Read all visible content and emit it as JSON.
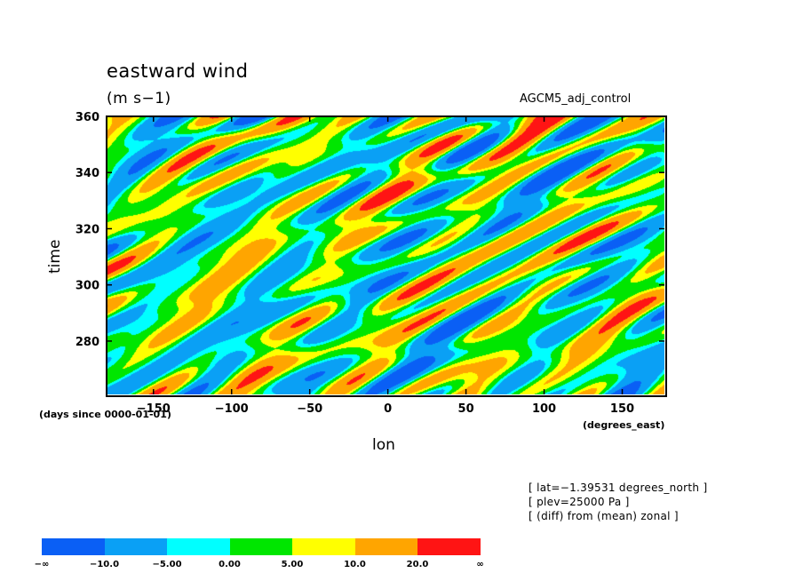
{
  "chart_data": {
    "type": "heatmap",
    "title": "eastward wind",
    "units": "(m s−1)",
    "experiment": "AGCM5_adj_control",
    "xlabel": "lon",
    "xunits": "(degrees_east)",
    "ylabel": "time",
    "yunits": "(days since 0000-01-01)",
    "xlim": [
      -180,
      177
    ],
    "ylim": [
      261,
      360
    ],
    "xticks": [
      -150,
      -100,
      -50,
      0,
      50,
      100,
      150
    ],
    "xtick_labels": [
      "−150",
      "−100",
      "−50",
      "0",
      "50",
      "100",
      "150"
    ],
    "yticks": [
      280,
      300,
      320,
      340,
      360
    ],
    "ytick_labels": [
      "280",
      "300",
      "320",
      "340",
      "360"
    ],
    "attributes": [
      "[ lat=−1.39531 degrees_north ]",
      "[ plev=25000 Pa ]",
      "[ (diff) from (mean) zonal ]"
    ],
    "colorbar": {
      "colors": [
        "#0a5ff5",
        "#0aa0f5",
        "#00ffff",
        "#00e600",
        "#ffff00",
        "#ffa500",
        "#ff1414"
      ],
      "labels": [
        "−∞",
        "−10.0",
        "−5.00",
        "0.00",
        "5.00",
        "10.0",
        "20.0",
        "∞"
      ]
    }
  }
}
